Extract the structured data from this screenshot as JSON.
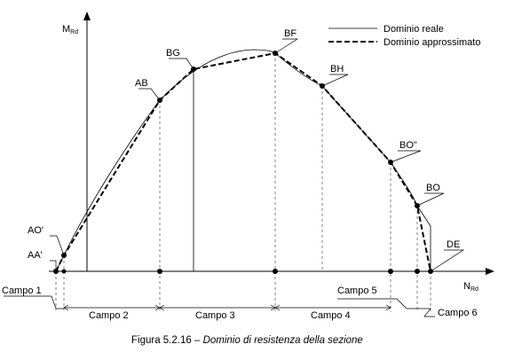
{
  "axes": {
    "y_label": "M",
    "y_label_sub": "Rd",
    "x_label": "N",
    "x_label_sub": "Rd"
  },
  "legend": {
    "real": "Dominio reale",
    "approx": "Dominio approssimato"
  },
  "points": {
    "AA": "AA'",
    "AO": "AO'",
    "AB": "AB",
    "BG": "BG",
    "BF": "BF",
    "BH": "BH",
    "BO2": "BO\"",
    "BO": "BO",
    "DE": "DE"
  },
  "fields": {
    "c1": "Campo 1",
    "c2": "Campo 2",
    "c3": "Campo 3",
    "c4": "Campo 4",
    "c5": "Campo 5",
    "c6": "Campo 6"
  },
  "caption": {
    "prefix": "Figura 5.2.16 – ",
    "title": "Dominio di resistenza della sezione"
  }
}
